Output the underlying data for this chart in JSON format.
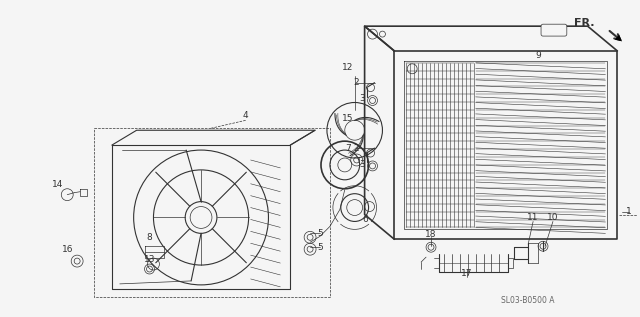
{
  "bg_color": "#f5f5f5",
  "diagram_color": "#333333",
  "fig_width": 6.4,
  "fig_height": 3.17,
  "dpi": 100,
  "watermark": "SL03-B0500 A",
  "fr_label": "FR."
}
